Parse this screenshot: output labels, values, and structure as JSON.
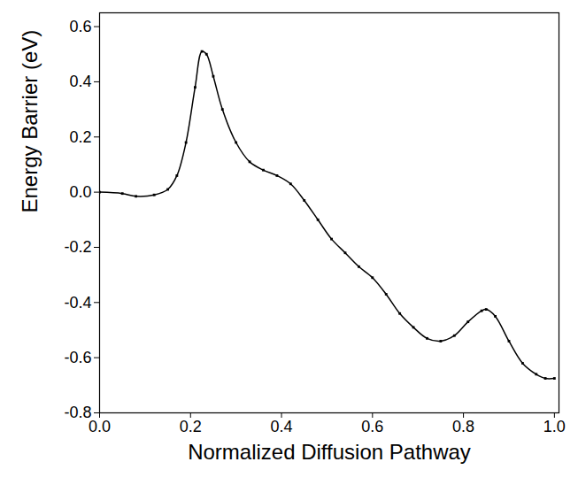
{
  "chart_data": {
    "type": "line",
    "x_label": "Normalized Diffusion Pathway",
    "y_label": "Energy Barrier (eV)",
    "x": [
      0,
      0.05,
      0.08,
      0.12,
      0.15,
      0.17,
      0.19,
      0.21,
      0.225,
      0.235,
      0.25,
      0.27,
      0.3,
      0.33,
      0.36,
      0.39,
      0.42,
      0.45,
      0.48,
      0.51,
      0.54,
      0.57,
      0.6,
      0.63,
      0.66,
      0.69,
      0.72,
      0.75,
      0.78,
      0.81,
      0.84,
      0.85,
      0.87,
      0.9,
      0.93,
      0.96,
      0.98,
      1.0
    ],
    "series": [
      {
        "name": "Energy Barrier",
        "color": "#000000",
        "marker": "square",
        "line_style": "solid",
        "values": [
          0.0,
          -0.005,
          -0.015,
          -0.01,
          0.01,
          0.06,
          0.18,
          0.38,
          0.51,
          0.5,
          0.42,
          0.3,
          0.18,
          0.11,
          0.08,
          0.06,
          0.03,
          -0.03,
          -0.1,
          -0.17,
          -0.22,
          -0.27,
          -0.31,
          -0.37,
          -0.44,
          -0.49,
          -0.53,
          -0.54,
          -0.52,
          -0.47,
          -0.43,
          -0.425,
          -0.45,
          -0.54,
          -0.62,
          -0.66,
          -0.675,
          -0.675
        ]
      }
    ],
    "xlim": [
      0,
      1.01
    ],
    "ylim": [
      -0.8,
      0.65
    ],
    "xticks": [
      {
        "value": 0,
        "label": "0.0"
      },
      0.2,
      0.4,
      0.6,
      0.8,
      {
        "value": 1,
        "label": "1.0"
      }
    ],
    "yticks": [
      -0.8,
      -0.6,
      -0.4,
      -0.2,
      {
        "value": 0,
        "label": "0.0"
      },
      0.2,
      0.4,
      0.6
    ],
    "grid": false
  }
}
